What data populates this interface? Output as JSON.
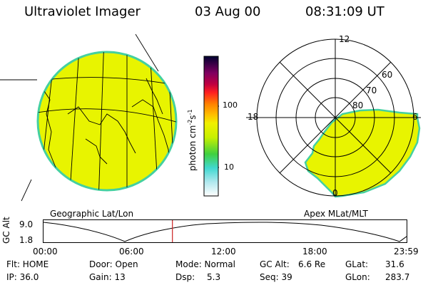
{
  "header": {
    "title": "Ultraviolet Imager",
    "date": "03 Aug 00",
    "time": "08:31:09 UT"
  },
  "panels": {
    "left_caption": "Geographic Lat/Lon",
    "right_caption": "Apex MLat/MLT"
  },
  "colorbar": {
    "unit_label": "photon cm",
    "unit_sup1": "-2",
    "unit_mid": "s",
    "unit_sup2": "-1",
    "ticks": [
      "100",
      "10"
    ]
  },
  "polar": {
    "mlt_labels": [
      "12",
      "18",
      "6",
      "0"
    ],
    "lat_labels": [
      "60",
      "70",
      "80"
    ]
  },
  "timeline": {
    "ylabel": "GC Alt",
    "ymax": "9.0",
    "ymin": "1.8",
    "xticks": [
      "00:00",
      "06:00",
      "12:00",
      "18:00",
      "23:59"
    ],
    "current_time_fraction": 0.355
  },
  "status": {
    "flt": "Flt: HOME",
    "ip": "IP: 36.0",
    "door": "Door: Open",
    "gain": "Gain: 13",
    "mode": "Mode: Normal",
    "dsp_label": "Dsp:",
    "dsp_value": "5.3",
    "gcalt_label": "GC Alt:",
    "gcalt_value": "6.6 Re",
    "seq": "Seq: 39",
    "glat_label": "GLat:",
    "glat_value": "31.6",
    "glon_label": "GLon:",
    "glon_value": "283.7"
  },
  "colors": {
    "fill": "#e8f400",
    "rim": "#44d0a0",
    "marker": "#cc2222"
  }
}
